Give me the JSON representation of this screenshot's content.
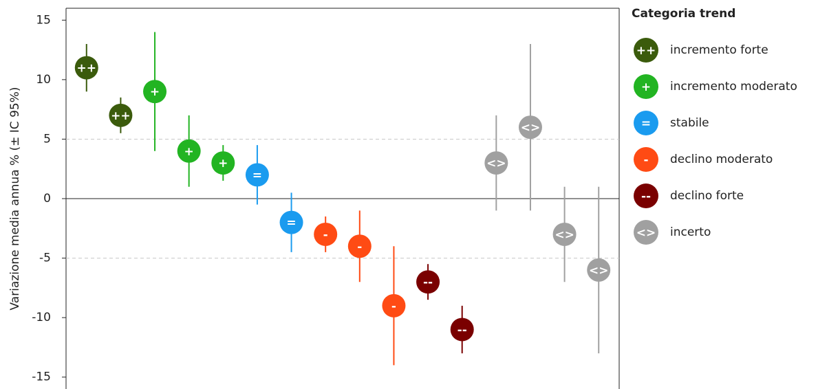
{
  "chart_data": {
    "type": "errorbar",
    "y_label": "Variazione media annua % (± IC 95%)",
    "legend_title": "Categoria trend",
    "ylim": [
      -16,
      16
    ],
    "yticks": [
      -15,
      -10,
      -5,
      0,
      5,
      10,
      15
    ],
    "xlim": [
      0.4,
      16.6
    ],
    "hlines": [
      {
        "value": -5,
        "style": "dashed"
      },
      {
        "value": 0,
        "style": "solid"
      },
      {
        "value": 5,
        "style": "dashed"
      }
    ],
    "series": [
      {
        "name": "incremento forte",
        "symbol": "++",
        "color": "#3b5b0c",
        "x": [
          1,
          2
        ],
        "values": [
          11,
          7
        ],
        "ci_low": [
          9,
          5.5
        ],
        "ci_high": [
          13,
          8.5
        ]
      },
      {
        "name": "incremento moderato",
        "symbol": "+",
        "color": "#22b422",
        "x": [
          3,
          4,
          5
        ],
        "values": [
          9,
          4,
          3
        ],
        "ci_low": [
          4,
          1,
          1.5
        ],
        "ci_high": [
          14,
          7,
          4.5
        ]
      },
      {
        "name": "stabile",
        "symbol": "=",
        "color": "#1a9bef",
        "x": [
          6,
          7
        ],
        "values": [
          2,
          -2
        ],
        "ci_low": [
          -0.5,
          -4.5
        ],
        "ci_high": [
          4.5,
          0.5
        ]
      },
      {
        "name": "declino moderato",
        "symbol": "-",
        "color": "#ff4b14",
        "x": [
          8,
          9,
          10
        ],
        "values": [
          -3,
          -4,
          -9
        ],
        "ci_low": [
          -4.5,
          -7,
          -14
        ],
        "ci_high": [
          -1.5,
          -1,
          -4
        ]
      },
      {
        "name": "declino forte",
        "symbol": "--",
        "color": "#7a0000",
        "x": [
          11,
          12
        ],
        "values": [
          -7,
          -11
        ],
        "ci_low": [
          -8.5,
          -13
        ],
        "ci_high": [
          -5.5,
          -9
        ]
      },
      {
        "name": "incerto",
        "symbol": "<>",
        "color": "#a0a0a0",
        "x": [
          13,
          14,
          15,
          16
        ],
        "values": [
          3,
          6,
          -3,
          -6
        ],
        "ci_low": [
          -1,
          -1,
          -7,
          -13
        ],
        "ci_high": [
          7,
          13,
          1,
          1
        ]
      }
    ]
  }
}
